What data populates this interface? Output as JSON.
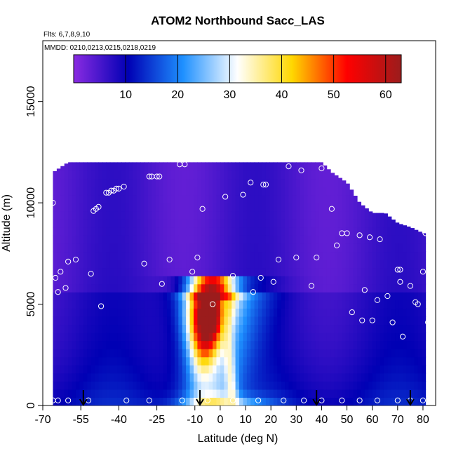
{
  "chart_data": {
    "type": "heatmap",
    "title": "ATOM2 Northbound Sacc_LAS",
    "flights_note": "Flts: 6,7,8,9,10",
    "dates_note": "MMDD: 0210,0213,0215,0218,0219",
    "xlabel": "Latitude (deg N)",
    "ylabel": "Altitude (m)",
    "xlim": [
      -70,
      85
    ],
    "ylim": [
      0,
      18000
    ],
    "x_ticks": [
      -70,
      -55,
      -40,
      -25,
      -10,
      0,
      10,
      20,
      30,
      40,
      50,
      60,
      70,
      80
    ],
    "y_ticks": [
      0,
      5000,
      10000,
      15000
    ],
    "colorbar": {
      "range": [
        0,
        63
      ],
      "ticks": [
        10,
        20,
        30,
        40,
        50,
        60
      ],
      "colors": [
        "#8a2be2",
        "#0000b4",
        "#1e90ff",
        "#ffffff",
        "#ffd700",
        "#ff0000",
        "#9b1c1c"
      ]
    },
    "field": {
      "lat_range": [
        -66,
        80
      ],
      "alt_step": 400,
      "max_altitude_by_lat": [
        [
          -66,
          11500
        ],
        [
          -60,
          12000
        ],
        [
          -50,
          12000
        ],
        [
          -40,
          12000
        ],
        [
          -20,
          12000
        ],
        [
          0,
          12000
        ],
        [
          20,
          12000
        ],
        [
          40,
          12000
        ],
        [
          44,
          11500
        ],
        [
          50,
          11000
        ],
        [
          55,
          10000
        ],
        [
          60,
          9500
        ],
        [
          65,
          9500
        ],
        [
          70,
          9000
        ],
        [
          75,
          8800
        ],
        [
          80,
          8500
        ]
      ],
      "plume": {
        "center_lat": -5,
        "center_alt": 4500,
        "peak_value": 60,
        "clear_band_lat": 5,
        "clear_band_value": 38
      }
    },
    "sample_points": [
      [
        -66,
        10000
      ],
      [
        -65,
        6300
      ],
      [
        -64,
        5600
      ],
      [
        -63,
        6600
      ],
      [
        -61,
        5800
      ],
      [
        -60,
        7100
      ],
      [
        -57,
        7200
      ],
      [
        -51,
        6500
      ],
      [
        -50,
        9600
      ],
      [
        -49,
        9700
      ],
      [
        -48,
        9800
      ],
      [
        -47,
        4900
      ],
      [
        -45,
        10500
      ],
      [
        -44,
        10500
      ],
      [
        -43,
        10600
      ],
      [
        -42,
        10600
      ],
      [
        -41,
        10700
      ],
      [
        -40,
        10700
      ],
      [
        -38,
        10800
      ],
      [
        -30,
        7000
      ],
      [
        -28,
        11300
      ],
      [
        -27,
        11300
      ],
      [
        -25,
        11300
      ],
      [
        -24,
        11300
      ],
      [
        -23,
        6000
      ],
      [
        -20,
        7200
      ],
      [
        -16,
        11900
      ],
      [
        -14,
        11900
      ],
      [
        -11,
        6600
      ],
      [
        -9,
        7300
      ],
      [
        -7,
        9700
      ],
      [
        -3,
        5000
      ],
      [
        2,
        10300
      ],
      [
        5,
        6400
      ],
      [
        9,
        10400
      ],
      [
        12,
        11000
      ],
      [
        17,
        10900
      ],
      [
        18,
        10900
      ],
      [
        13,
        5600
      ],
      [
        16,
        6300
      ],
      [
        21,
        6100
      ],
      [
        23,
        7200
      ],
      [
        27,
        11800
      ],
      [
        30,
        7300
      ],
      [
        32,
        11600
      ],
      [
        36,
        5900
      ],
      [
        38,
        7300
      ],
      [
        40,
        11700
      ],
      [
        44,
        9700
      ],
      [
        46,
        7900
      ],
      [
        48,
        8500
      ],
      [
        50,
        8500
      ],
      [
        52,
        4600
      ],
      [
        55,
        8400
      ],
      [
        56,
        4200
      ],
      [
        57,
        5700
      ],
      [
        59,
        8300
      ],
      [
        60,
        4200
      ],
      [
        62,
        5200
      ],
      [
        63,
        8200
      ],
      [
        66,
        5400
      ],
      [
        68,
        4100
      ],
      [
        70,
        6700
      ],
      [
        71,
        6700
      ],
      [
        71,
        6100
      ],
      [
        72,
        3400
      ],
      [
        73,
        9300
      ],
      [
        75,
        5900
      ],
      [
        77,
        5100
      ],
      [
        78,
        5000
      ],
      [
        79,
        9300
      ],
      [
        80,
        6600
      ],
      [
        81,
        8500
      ],
      [
        82,
        4100
      ]
    ],
    "surface_points": [
      -66,
      -64,
      -60,
      -52,
      -37,
      -28,
      -15,
      -5,
      5,
      15,
      25,
      33,
      40,
      48,
      55,
      62,
      70,
      75,
      80
    ],
    "arrows_lat": [
      -54,
      -8,
      38,
      75
    ]
  }
}
